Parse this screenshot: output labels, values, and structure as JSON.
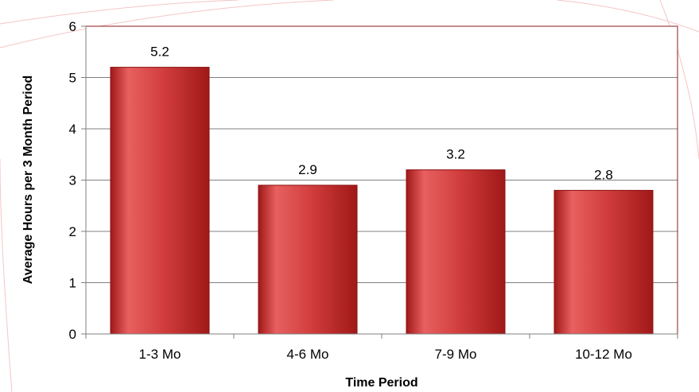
{
  "chart_data": {
    "type": "bar",
    "categories": [
      "1-3 Mo",
      "4-6 Mo",
      "7-9 Mo",
      "10-12 Mo"
    ],
    "values": [
      5.2,
      2.9,
      3.2,
      2.8
    ],
    "data_labels": [
      "5.2",
      "2.9",
      "3.2",
      "2.8"
    ],
    "xlabel": "Time Period",
    "ylabel": "Average Hours per 3 Month Period",
    "ylim": [
      0,
      6
    ],
    "yticks": [
      "0",
      "1",
      "2",
      "3",
      "4",
      "5",
      "6"
    ],
    "grid": true,
    "legend": "none",
    "colors": {
      "bar_top": "#e86060",
      "bar_mid": "#d03c3c",
      "bar_dark": "#a01818",
      "bar_edge": "#8b1010",
      "plot_border": "#8b1a1a",
      "gridline": "#808080",
      "background_line": "#f4c6c6"
    }
  }
}
